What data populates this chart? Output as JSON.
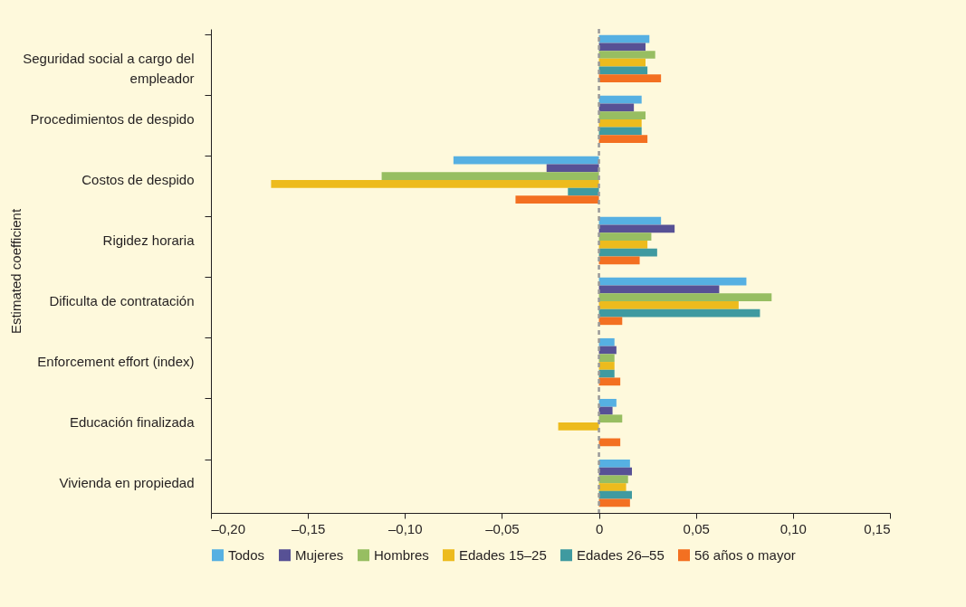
{
  "chart_data": {
    "type": "bar",
    "orientation": "horizontal",
    "ylabel": "Estimated coefficient",
    "categories": [
      "Seguridad social a cargo del empleador",
      "Procedimientos de despido",
      "Costos de despido",
      "Rigidez horaria",
      "Dificulta de contratación",
      "Enforcement effort (index)",
      "Educación finalizada",
      "Vivienda en propiedad"
    ],
    "series": [
      {
        "name": "Todos",
        "color": "#56b0e2",
        "values": [
          0.026,
          0.022,
          -0.075,
          0.032,
          0.076,
          0.008,
          0.009,
          0.016
        ]
      },
      {
        "name": "Mujeres",
        "color": "#575195",
        "values": [
          0.024,
          0.018,
          -0.027,
          0.039,
          0.062,
          0.009,
          0.007,
          0.017
        ]
      },
      {
        "name": "Hombres",
        "color": "#97be62",
        "values": [
          0.029,
          0.024,
          -0.112,
          0.027,
          0.089,
          0.008,
          0.012,
          0.015
        ]
      },
      {
        "name": "Edades 15–25",
        "color": "#edbb1d",
        "values": [
          0.024,
          0.022,
          -0.169,
          0.025,
          0.072,
          0.008,
          -0.021,
          0.014
        ]
      },
      {
        "name": "Edades 26–55",
        "color": "#3f9aa0",
        "values": [
          0.025,
          0.022,
          -0.016,
          0.03,
          0.083,
          0.008,
          0.0,
          0.017
        ]
      },
      {
        "name": "56 años o mayor",
        "color": "#f37021",
        "values": [
          0.032,
          0.025,
          -0.043,
          0.021,
          0.012,
          0.011,
          0.011,
          0.016
        ]
      }
    ],
    "xlim": [
      -0.2,
      0.15
    ],
    "xticks": [
      {
        "value": -0.2,
        "label": "–0,20"
      },
      {
        "value": -0.15,
        "label": "–0,15"
      },
      {
        "value": -0.1,
        "label": "–0,10"
      },
      {
        "value": -0.05,
        "label": "–0,05"
      },
      0,
      {
        "value": 0.05,
        "label": "0,05"
      },
      {
        "value": 0.1,
        "label": "0,10"
      },
      {
        "value": 0.15,
        "label": "0,15"
      }
    ],
    "ref_lines": [
      {
        "axis": "x",
        "value": 0,
        "color": "#999999",
        "line_style": "dashed"
      }
    ],
    "grid": false,
    "legend": "bottom"
  }
}
